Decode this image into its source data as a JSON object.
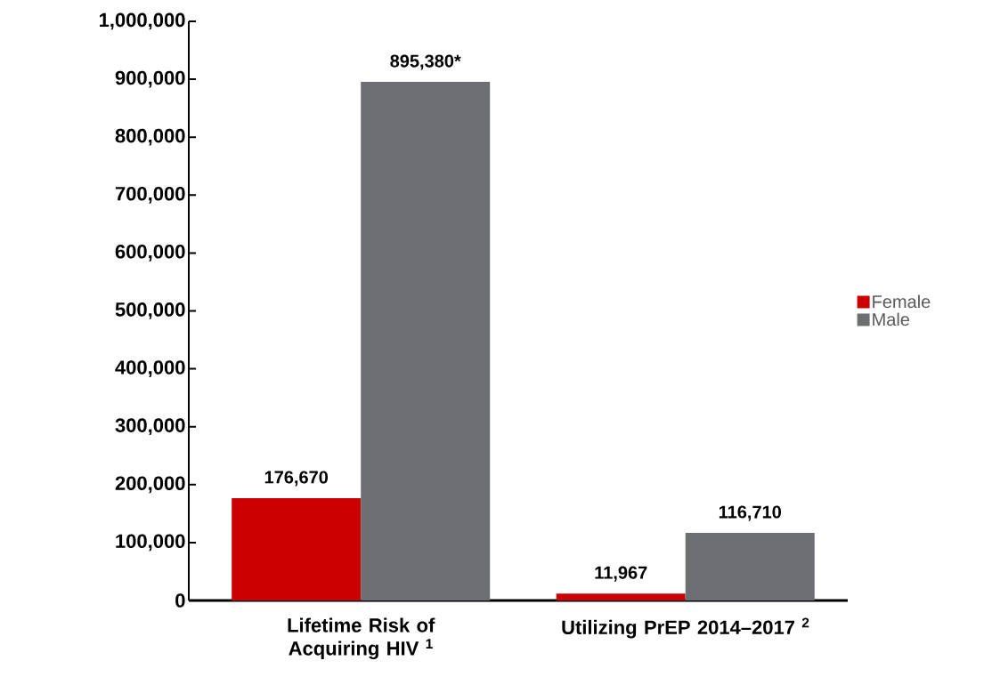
{
  "chart_data": {
    "type": "bar",
    "categories": [
      "Lifetime Risk of Acquiring HIV $^{1}$",
      "Utilizing PrEP 2014–2017 $^{2}$"
    ],
    "series": [
      {
        "name": "Female",
        "color": "#cc0000",
        "values": [
          176670,
          11967
        ],
        "value_labels": [
          "176,670",
          "11,967"
        ]
      },
      {
        "name": "Male",
        "color": "#6d6e71",
        "values": [
          895380,
          116710
        ],
        "value_labels": [
          "895,380*",
          "116,710"
        ]
      }
    ],
    "ylim": [
      0,
      1000000
    ],
    "yticks": [
      {
        "value": 0,
        "label": "0"
      },
      {
        "value": 100000,
        "label": "100,000"
      },
      {
        "value": 200000,
        "label": "200,000"
      },
      {
        "value": 300000,
        "label": "300,000"
      },
      {
        "value": 400000,
        "label": "400,000"
      },
      {
        "value": 500000,
        "label": "500,000"
      },
      {
        "value": 600000,
        "label": "600,000"
      },
      {
        "value": 700000,
        "label": "700,000"
      },
      {
        "value": 800000,
        "label": "800,000"
      },
      {
        "value": 900000,
        "label": "900,000"
      },
      {
        "value": 1000000,
        "label": "1,000,000"
      }
    ],
    "legend": "right",
    "grid": false
  }
}
